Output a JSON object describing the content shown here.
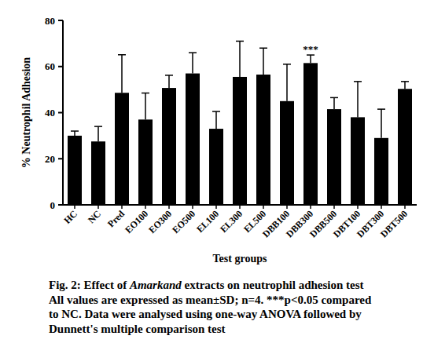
{
  "chart_data": {
    "type": "bar",
    "categories": [
      "HC",
      "NC",
      "Pred",
      "EO100",
      "EO300",
      "EO500",
      "EL100",
      "EL300",
      "EL500",
      "DBB100",
      "DBB300",
      "DBB500",
      "DBT100",
      "DBT300",
      "DBT500"
    ],
    "values": [
      30,
      27.5,
      48.6,
      37,
      50.7,
      57,
      33,
      55.5,
      56.5,
      45,
      61.5,
      41.5,
      38,
      29,
      50.3
    ],
    "errors": [
      2,
      6.5,
      16.5,
      11.5,
      5.5,
      9,
      7.5,
      15.5,
      11.5,
      16,
      3.5,
      5,
      15.5,
      12.5,
      3.2
    ],
    "color": "#000000",
    "x_label": "Test groups",
    "y_label": "% Neutrophil Adhesion",
    "ylim": [
      0,
      80
    ],
    "yticks": [
      0,
      20,
      40,
      60,
      80
    ],
    "grid": false,
    "annotations": [
      {
        "text": "***",
        "category": "DBB300"
      }
    ],
    "caption": [
      [
        "Fig. 2: Effect of ",
        "Amarkand",
        " extracts on neutrophil adhesion test"
      ],
      [
        "All values are expressed as mean±SD; n=4. ***p<0.05 compared"
      ],
      [
        "to NC. Data were analysed using one-way ANOVA followed by"
      ],
      [
        "Dunnett's multiple comparison test"
      ]
    ]
  }
}
